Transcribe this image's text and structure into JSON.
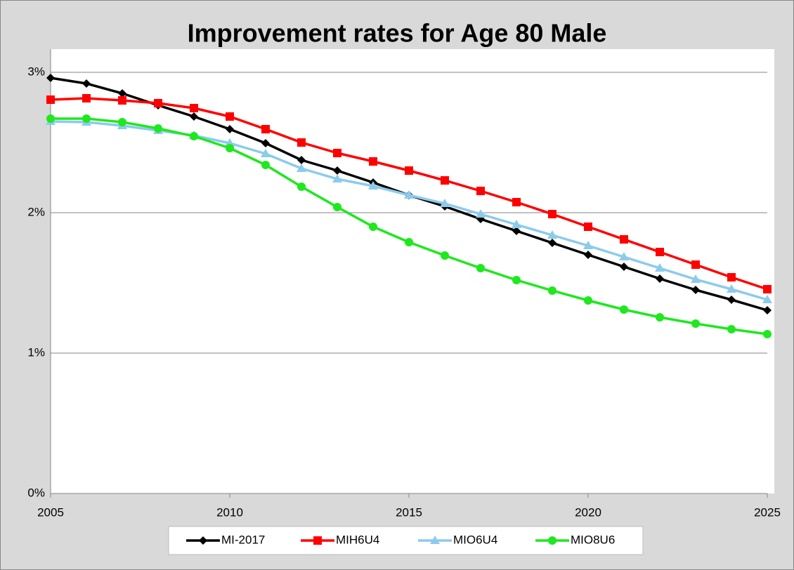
{
  "chart_data": {
    "type": "line",
    "title": "Improvement rates for Age 80 Male",
    "x": [
      2005,
      2006,
      2007,
      2008,
      2009,
      2010,
      2011,
      2012,
      2013,
      2014,
      2015,
      2016,
      2017,
      2018,
      2019,
      2020,
      2021,
      2022,
      2023,
      2024,
      2025
    ],
    "xlim": [
      2005,
      2025
    ],
    "xticks": [
      2005,
      2010,
      2015,
      2020,
      2025
    ],
    "ylim": [
      0,
      3
    ],
    "yticks": [
      {
        "value": 0,
        "label": "0%"
      },
      {
        "value": 1,
        "label": "1%"
      },
      {
        "value": 2,
        "label": "2%"
      },
      {
        "value": 3,
        "label": "3%"
      }
    ],
    "grid": true,
    "legend": "bottom",
    "series": [
      {
        "name": "MI-2017",
        "color": "#000000",
        "marker": "diamond",
        "values": [
          2.96,
          2.92,
          2.85,
          2.765,
          2.685,
          2.595,
          2.495,
          2.375,
          2.3,
          2.215,
          2.125,
          2.045,
          1.955,
          1.87,
          1.785,
          1.7,
          1.615,
          1.53,
          1.45,
          1.38,
          1.305
        ]
      },
      {
        "name": "MIH6U4",
        "color": "#ff0000",
        "marker": "square",
        "values": [
          2.805,
          2.815,
          2.8,
          2.78,
          2.745,
          2.685,
          2.595,
          2.5,
          2.425,
          2.365,
          2.3,
          2.23,
          2.155,
          2.075,
          1.99,
          1.9,
          1.81,
          1.72,
          1.63,
          1.54,
          1.455
        ]
      },
      {
        "name": "MIO6U4",
        "color": "#8ccbec",
        "marker": "triangle",
        "values": [
          2.65,
          2.645,
          2.62,
          2.585,
          2.55,
          2.495,
          2.42,
          2.315,
          2.24,
          2.19,
          2.125,
          2.065,
          1.99,
          1.915,
          1.84,
          1.765,
          1.685,
          1.605,
          1.525,
          1.455,
          1.38
        ]
      },
      {
        "name": "MIO8U6",
        "color": "#1ee81e",
        "marker": "circle",
        "values": [
          2.67,
          2.67,
          2.645,
          2.6,
          2.545,
          2.46,
          2.34,
          2.185,
          2.04,
          1.9,
          1.79,
          1.695,
          1.605,
          1.52,
          1.445,
          1.375,
          1.31,
          1.255,
          1.21,
          1.17,
          1.135
        ]
      }
    ]
  }
}
